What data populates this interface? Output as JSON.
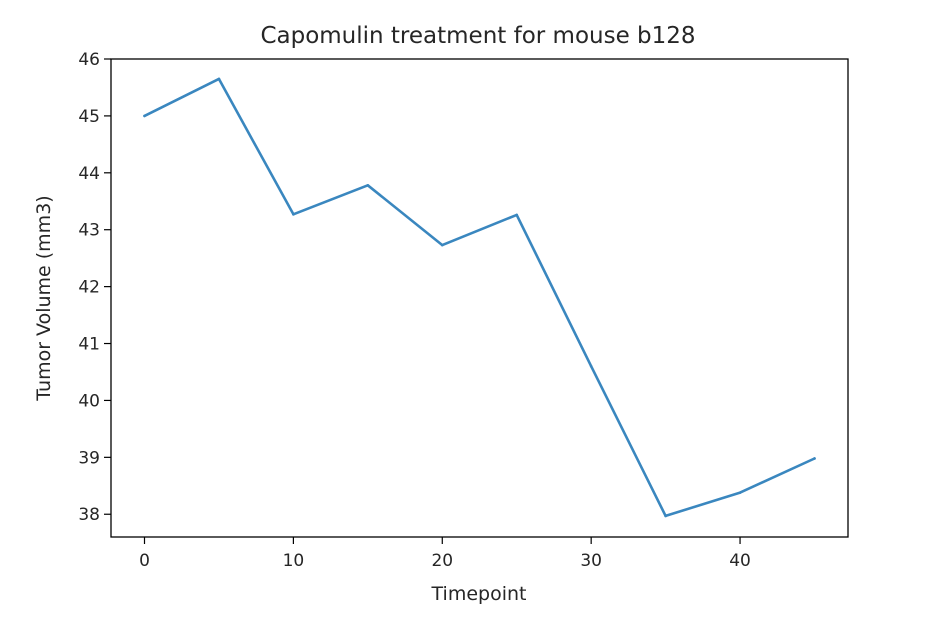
{
  "chart_data": {
    "type": "line",
    "title": "Capomulin treatment for mouse b128",
    "xlabel": "Timepoint",
    "ylabel": "Tumor Volume (mm3)",
    "xlim": [
      -2.25,
      47.25
    ],
    "ylim": [
      37.6,
      46.0
    ],
    "xticks": [
      0,
      10,
      20,
      30,
      40
    ],
    "yticks": [
      38,
      39,
      40,
      41,
      42,
      43,
      44,
      45,
      46
    ],
    "grid": false,
    "series": [
      {
        "color": "#3a87bf",
        "x": [
          0,
          5,
          10,
          15,
          20,
          25,
          30,
          35,
          40,
          45
        ],
        "y": [
          45.0,
          45.65,
          43.27,
          43.78,
          42.73,
          43.26,
          40.6,
          37.97,
          38.38,
          38.98
        ]
      }
    ]
  }
}
